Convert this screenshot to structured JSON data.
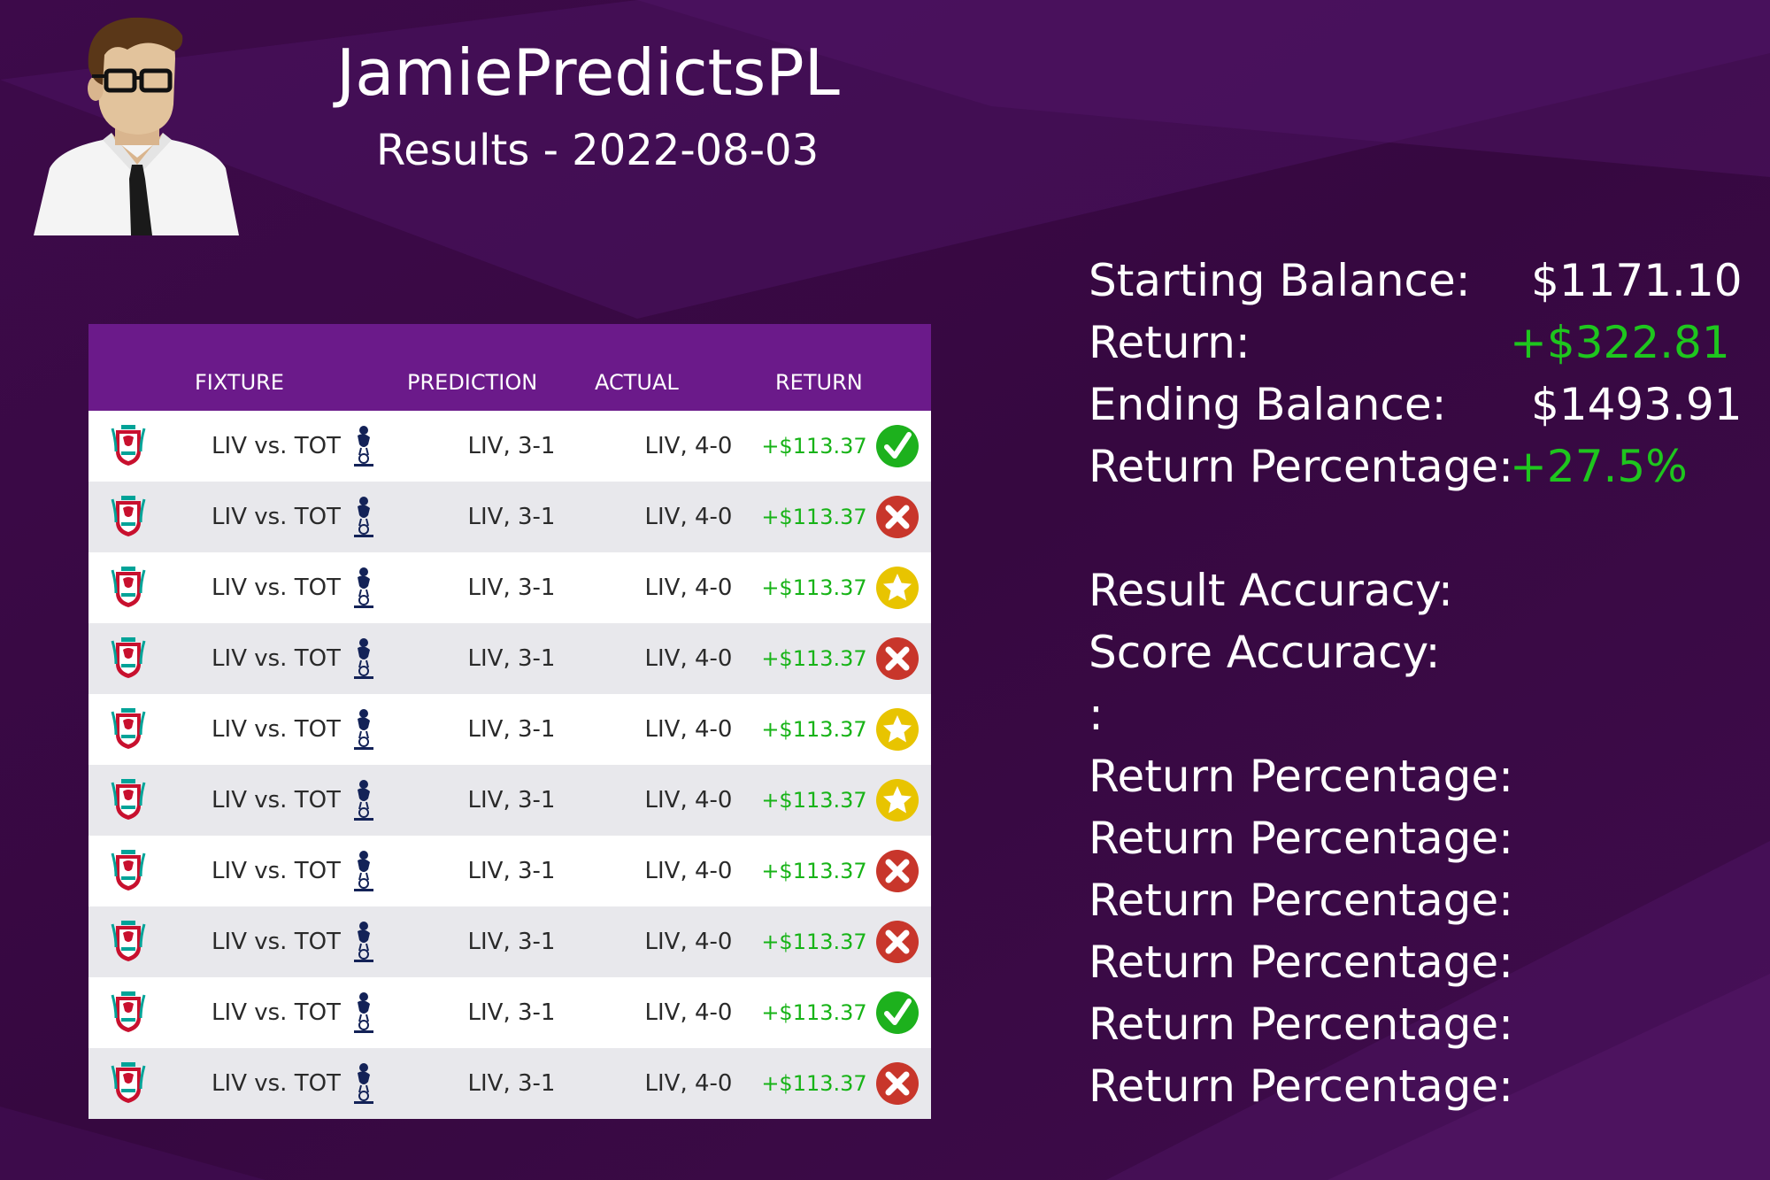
{
  "header": {
    "title": "JamiePredictsPL",
    "subtitle": "Results - 2022-08-03"
  },
  "table": {
    "columns": [
      "FIXTURE",
      "PREDICTION",
      "ACTUAL",
      "RETURN"
    ],
    "rows": [
      {
        "fixture": "LIV vs. TOT",
        "prediction": "LIV, 3-1",
        "actual": "LIV, 4-0",
        "return": "+$113.37",
        "status": "check"
      },
      {
        "fixture": "LIV vs. TOT",
        "prediction": "LIV, 3-1",
        "actual": "LIV, 4-0",
        "return": "+$113.37",
        "status": "cross"
      },
      {
        "fixture": "LIV vs. TOT",
        "prediction": "LIV, 3-1",
        "actual": "LIV, 4-0",
        "return": "+$113.37",
        "status": "star"
      },
      {
        "fixture": "LIV vs. TOT",
        "prediction": "LIV, 3-1",
        "actual": "LIV, 4-0",
        "return": "+$113.37",
        "status": "cross"
      },
      {
        "fixture": "LIV vs. TOT",
        "prediction": "LIV, 3-1",
        "actual": "LIV, 4-0",
        "return": "+$113.37",
        "status": "star"
      },
      {
        "fixture": "LIV vs. TOT",
        "prediction": "LIV, 3-1",
        "actual": "LIV, 4-0",
        "return": "+$113.37",
        "status": "star"
      },
      {
        "fixture": "LIV vs. TOT",
        "prediction": "LIV, 3-1",
        "actual": "LIV, 4-0",
        "return": "+$113.37",
        "status": "cross"
      },
      {
        "fixture": "LIV vs. TOT",
        "prediction": "LIV, 3-1",
        "actual": "LIV, 4-0",
        "return": "+$113.37",
        "status": "cross"
      },
      {
        "fixture": "LIV vs. TOT",
        "prediction": "LIV, 3-1",
        "actual": "LIV, 4-0",
        "return": "+$113.37",
        "status": "check"
      },
      {
        "fixture": "LIV vs. TOT",
        "prediction": "LIV, 3-1",
        "actual": "LIV, 4-0",
        "return": "+$113.37",
        "status": "cross"
      }
    ]
  },
  "stats": {
    "starting_label": "Starting Balance:",
    "starting_value": "$1171.10",
    "return_label": "Return:",
    "return_value": "+$322.81",
    "ending_label": "Ending Balance:",
    "ending_value": "$1493.91",
    "pct_label": "Return Percentage:",
    "pct_value": "+27.5%",
    "result_acc_label": "Result Accuracy:",
    "score_acc_label": "Score Accuracy:",
    "colon_label": ":",
    "extra_labels": [
      "Return Percentage:",
      "Return Percentage:",
      "Return Percentage:",
      "Return Percentage:",
      "Return Percentage:",
      "Return Percentage:"
    ]
  },
  "colors": {
    "background": "#3a0a45",
    "table_header": "#6b1a8a",
    "positive": "#1ec61e",
    "check": "#1db11d",
    "cross": "#c8362b",
    "star": "#e8c400"
  },
  "icons": {
    "home_crest": "liverpool-crest-icon",
    "away_crest": "tottenham-crest-icon"
  }
}
